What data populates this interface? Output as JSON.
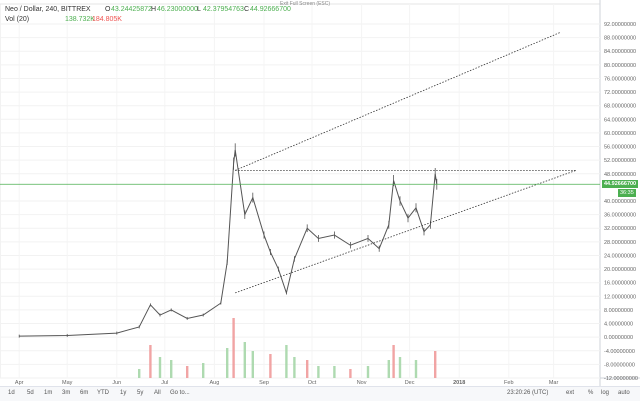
{
  "header": {
    "symbol": "Neo / Dollar, 240, BITTREX",
    "o_label": "O",
    "o_value": "43.24425872",
    "h_label": "H",
    "h_value": "46.23000000",
    "l_label": "L",
    "l_value": "42.37954763",
    "c_label": "C",
    "c_value": "44.92666700",
    "vol_label": "Vol (20)",
    "vol_value1": "138.732K",
    "vol_value2": "184.805K",
    "exit_fullscreen": "Exit Full Screen (ESC)"
  },
  "current_price_tag": "44.92666700",
  "time_to_close_tag": "36:35",
  "bottom_bar": {
    "timeframes": [
      "1d",
      "5d",
      "1m",
      "3m",
      "6m",
      "YTD",
      "1y",
      "5y",
      "All",
      "Go to..."
    ],
    "clock": "23:20:26 (UTC)",
    "toggles": [
      "ext",
      "%",
      "log",
      "auto"
    ]
  },
  "colors": {
    "candle": "#555555",
    "vol_up": "#a5d6a7",
    "vol_down": "#ef9a9a",
    "price_line": "#4caf50",
    "trendline": "#333333"
  },
  "chart_data": {
    "type": "candlestick",
    "title": "Neo / Dollar, 240, BITTREX",
    "xlabel": "",
    "ylabel": "",
    "x_ticks": [
      "Apr",
      "May",
      "Jun",
      "Jul",
      "Aug",
      "Sep",
      "Oct",
      "Nov",
      "Dec",
      "2018",
      "Feb",
      "Mar"
    ],
    "y_ticks": [
      "92.00000000",
      "88.00000000",
      "84.00000000",
      "80.00000000",
      "76.00000000",
      "72.00000000",
      "68.00000000",
      "64.00000000",
      "60.00000000",
      "56.00000000",
      "52.00000000",
      "48.00000000",
      "40.00000000",
      "36.00000000",
      "32.00000000",
      "28.00000000",
      "24.00000000",
      "20.00000000",
      "16.00000000",
      "12.00000000",
      "8.00000000",
      "4.00000000",
      "0.00000000",
      "-4.00000000",
      "-8.00000000",
      "-12.00000000"
    ],
    "ylim": [
      -12,
      92
    ],
    "last_price": 44.926667,
    "price_path": [
      [
        "2017-04-01",
        0.3
      ],
      [
        "2017-05-01",
        0.5
      ],
      [
        "2017-06-01",
        1.2
      ],
      [
        "2017-06-15",
        3.0
      ],
      [
        "2017-06-22",
        9.5
      ],
      [
        "2017-06-28",
        6.5
      ],
      [
        "2017-07-05",
        8.0
      ],
      [
        "2017-07-15",
        5.5
      ],
      [
        "2017-07-25",
        6.5
      ],
      [
        "2017-08-05",
        10.0
      ],
      [
        "2017-08-09",
        22.0
      ],
      [
        "2017-08-13",
        51.0
      ],
      [
        "2017-08-14",
        55.0
      ],
      [
        "2017-08-20",
        36.0
      ],
      [
        "2017-08-25",
        41.0
      ],
      [
        "2017-09-01",
        30.0
      ],
      [
        "2017-09-05",
        25.0
      ],
      [
        "2017-09-10",
        20.0
      ],
      [
        "2017-09-15",
        13.0
      ],
      [
        "2017-09-20",
        23.0
      ],
      [
        "2017-09-28",
        32.0
      ],
      [
        "2017-10-05",
        29.0
      ],
      [
        "2017-10-15",
        30.0
      ],
      [
        "2017-10-25",
        27.0
      ],
      [
        "2017-11-05",
        29.0
      ],
      [
        "2017-11-12",
        26.0
      ],
      [
        "2017-11-18",
        33.0
      ],
      [
        "2017-11-21",
        46.0
      ],
      [
        "2017-11-25",
        40.0
      ],
      [
        "2017-11-30",
        35.0
      ],
      [
        "2017-12-05",
        38.0
      ],
      [
        "2017-12-10",
        31.0
      ],
      [
        "2017-12-14",
        33.0
      ],
      [
        "2017-12-17",
        48.0
      ],
      [
        "2017-12-18",
        44.9
      ]
    ],
    "trendlines": [
      {
        "name": "upper-channel",
        "from": [
          "2017-08-14",
          49.0
        ],
        "to": [
          "2018-03-05",
          89.5
        ],
        "style": "dotted"
      },
      {
        "name": "resistance",
        "from": [
          "2017-08-14",
          49.0
        ],
        "to": [
          "2018-03-15",
          49.0
        ],
        "style": "dotted"
      },
      {
        "name": "rising-support",
        "from": [
          "2017-08-14",
          13.0
        ],
        "to": [
          "2018-03-15",
          49.0
        ],
        "style": "dotted"
      }
    ],
    "volume": {
      "note_units": "relative",
      "bars": [
        [
          "2017-06-15",
          0.15
        ],
        [
          "2017-06-22",
          0.55
        ],
        [
          "2017-06-28",
          0.35
        ],
        [
          "2017-07-05",
          0.3
        ],
        [
          "2017-07-15",
          0.2
        ],
        [
          "2017-07-25",
          0.25
        ],
        [
          "2017-08-09",
          0.5
        ],
        [
          "2017-08-13",
          1.0
        ],
        [
          "2017-08-20",
          0.6
        ],
        [
          "2017-08-25",
          0.45
        ],
        [
          "2017-09-05",
          0.4
        ],
        [
          "2017-09-15",
          0.55
        ],
        [
          "2017-09-20",
          0.35
        ],
        [
          "2017-09-28",
          0.3
        ],
        [
          "2017-10-05",
          0.2
        ],
        [
          "2017-10-15",
          0.2
        ],
        [
          "2017-10-25",
          0.15
        ],
        [
          "2017-11-05",
          0.2
        ],
        [
          "2017-11-18",
          0.3
        ],
        [
          "2017-11-21",
          0.55
        ],
        [
          "2017-11-25",
          0.35
        ],
        [
          "2017-12-05",
          0.3
        ],
        [
          "2017-12-17",
          0.45
        ]
      ]
    },
    "grid": true,
    "legend": "top-left"
  }
}
